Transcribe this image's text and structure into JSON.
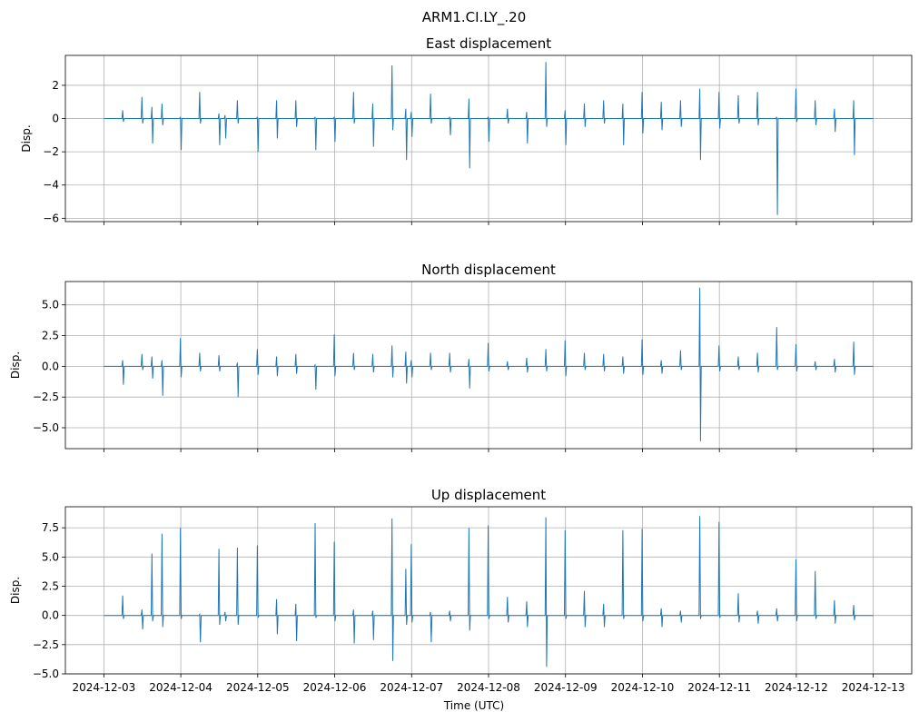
{
  "figure": {
    "suptitle": "ARM1.CI.LY_.20",
    "xlabel": "Time (UTC)"
  },
  "chart_data": [
    {
      "type": "line",
      "title": "East displacement",
      "ylabel": "Disp.",
      "ylim": [
        -6.2,
        3.8
      ],
      "yticks": [
        2,
        0,
        -2,
        -4,
        -6
      ],
      "ytick_labels": [
        "2",
        "0",
        "−2",
        "−4",
        "−6"
      ],
      "xlim": [
        -0.5,
        10.5
      ],
      "grid": true,
      "color": "#1f77b4",
      "spikes": [
        [
          0.25,
          0.5,
          -0.2
        ],
        [
          0.5,
          1.3,
          -0.3
        ],
        [
          0.63,
          0.7,
          -1.5
        ],
        [
          0.76,
          0.9,
          -0.4
        ],
        [
          1.0,
          0.1,
          -1.9
        ],
        [
          1.25,
          1.6,
          -0.3
        ],
        [
          1.5,
          0.3,
          -1.6
        ],
        [
          1.58,
          0.2,
          -1.2
        ],
        [
          1.74,
          1.1,
          -0.3
        ],
        [
          2.0,
          0.1,
          -2.0
        ],
        [
          2.25,
          1.1,
          -1.2
        ],
        [
          2.5,
          1.1,
          -0.5
        ],
        [
          2.75,
          0.1,
          -1.9
        ],
        [
          3.0,
          0.1,
          -1.4
        ],
        [
          3.25,
          1.6,
          -0.3
        ],
        [
          3.5,
          0.9,
          -1.7
        ],
        [
          3.75,
          3.2,
          -0.7
        ],
        [
          3.93,
          0.6,
          -2.5
        ],
        [
          4.0,
          0.4,
          -1.1
        ],
        [
          4.25,
          1.5,
          -0.3
        ],
        [
          4.5,
          0.1,
          -1.0
        ],
        [
          4.75,
          1.2,
          -3.0
        ],
        [
          5.0,
          0.1,
          -1.4
        ],
        [
          5.25,
          0.6,
          -0.3
        ],
        [
          5.5,
          0.4,
          -1.5
        ],
        [
          5.75,
          3.4,
          -0.5
        ],
        [
          6.0,
          0.5,
          -1.6
        ],
        [
          6.25,
          0.9,
          -0.5
        ],
        [
          6.5,
          1.1,
          -0.3
        ],
        [
          6.75,
          0.9,
          -1.6
        ],
        [
          7.0,
          1.6,
          -0.9
        ],
        [
          7.25,
          1.0,
          -0.7
        ],
        [
          7.5,
          1.1,
          -0.5
        ],
        [
          7.75,
          1.8,
          -2.5
        ],
        [
          8.0,
          1.6,
          -0.6
        ],
        [
          8.25,
          1.4,
          -0.3
        ],
        [
          8.5,
          1.6,
          -0.4
        ],
        [
          8.75,
          0.1,
          -5.8
        ],
        [
          9.0,
          1.8,
          -0.2
        ],
        [
          9.25,
          1.1,
          -0.4
        ],
        [
          9.5,
          0.6,
          -0.8
        ],
        [
          9.75,
          1.1,
          -2.2
        ]
      ]
    },
    {
      "type": "line",
      "title": "North displacement",
      "ylabel": "Disp.",
      "ylim": [
        -6.7,
        6.9
      ],
      "yticks": [
        5.0,
        2.5,
        0.0,
        -2.5,
        -5.0
      ],
      "ytick_labels": [
        "5.0",
        "2.5",
        "0.0",
        "−2.5",
        "−5.0"
      ],
      "xlim": [
        -0.5,
        10.5
      ],
      "grid": true,
      "color": "#1f77b4",
      "spikes": [
        [
          0.25,
          0.5,
          -1.5
        ],
        [
          0.5,
          1.0,
          -0.3
        ],
        [
          0.63,
          0.8,
          -1.0
        ],
        [
          0.76,
          0.5,
          -2.4
        ],
        [
          1.0,
          2.3,
          -0.9
        ],
        [
          1.25,
          1.1,
          -0.4
        ],
        [
          1.5,
          0.9,
          -0.4
        ],
        [
          1.74,
          0.3,
          -2.5
        ],
        [
          2.0,
          1.4,
          -0.7
        ],
        [
          2.25,
          0.8,
          -0.8
        ],
        [
          2.5,
          1.0,
          -0.6
        ],
        [
          2.75,
          0.1,
          -1.9
        ],
        [
          3.0,
          2.6,
          -0.8
        ],
        [
          3.25,
          1.1,
          -0.3
        ],
        [
          3.5,
          1.0,
          -0.5
        ],
        [
          3.75,
          1.7,
          -0.9
        ],
        [
          3.93,
          1.2,
          -1.4
        ],
        [
          4.0,
          0.5,
          -0.9
        ],
        [
          4.25,
          1.1,
          -0.3
        ],
        [
          4.5,
          1.1,
          -0.5
        ],
        [
          4.75,
          0.6,
          -1.8
        ],
        [
          5.0,
          1.9,
          -0.4
        ],
        [
          5.25,
          0.4,
          -0.3
        ],
        [
          5.5,
          0.7,
          -0.5
        ],
        [
          5.75,
          1.4,
          -0.4
        ],
        [
          6.0,
          2.1,
          -0.8
        ],
        [
          6.25,
          1.1,
          -0.3
        ],
        [
          6.5,
          1.0,
          -0.4
        ],
        [
          6.75,
          0.8,
          -0.6
        ],
        [
          7.0,
          2.2,
          -0.7
        ],
        [
          7.25,
          0.5,
          -0.6
        ],
        [
          7.5,
          1.3,
          -0.3
        ],
        [
          7.75,
          6.4,
          -6.1
        ],
        [
          8.0,
          1.7,
          -0.4
        ],
        [
          8.25,
          0.8,
          -0.3
        ],
        [
          8.5,
          1.1,
          -0.5
        ],
        [
          8.75,
          3.2,
          -0.3
        ],
        [
          9.0,
          1.8,
          -0.4
        ],
        [
          9.25,
          0.4,
          -0.3
        ],
        [
          9.5,
          0.6,
          -0.5
        ],
        [
          9.75,
          2.0,
          -0.7
        ]
      ]
    },
    {
      "type": "line",
      "title": "Up displacement",
      "ylabel": "Disp.",
      "ylim": [
        -5.0,
        9.3
      ],
      "yticks": [
        7.5,
        5.0,
        2.5,
        0.0,
        -2.5,
        -5.0
      ],
      "ytick_labels": [
        "7.5",
        "5.0",
        "2.5",
        "0.0",
        "−2.5",
        "−5.0"
      ],
      "xlim": [
        -0.5,
        10.5
      ],
      "grid": true,
      "color": "#1f77b4",
      "spikes": [
        [
          0.25,
          1.7,
          -0.3
        ],
        [
          0.5,
          0.5,
          -1.2
        ],
        [
          0.63,
          5.3,
          -0.5
        ],
        [
          0.76,
          7.0,
          -1.0
        ],
        [
          1.0,
          7.5,
          -0.3
        ],
        [
          1.25,
          0.1,
          -2.3
        ],
        [
          1.5,
          5.7,
          -0.8
        ],
        [
          1.58,
          0.3,
          -0.5
        ],
        [
          1.74,
          5.8,
          -0.8
        ],
        [
          2.0,
          6.0,
          -0.2
        ],
        [
          2.25,
          1.4,
          -1.6
        ],
        [
          2.5,
          1.0,
          -2.2
        ],
        [
          2.75,
          7.9,
          -0.2
        ],
        [
          3.0,
          6.3,
          -0.5
        ],
        [
          3.25,
          0.5,
          -2.4
        ],
        [
          3.5,
          0.4,
          -2.1
        ],
        [
          3.75,
          8.3,
          -3.9
        ],
        [
          3.93,
          4.0,
          -0.8
        ],
        [
          4.0,
          6.1,
          -0.6
        ],
        [
          4.25,
          0.3,
          -2.3
        ],
        [
          4.5,
          0.4,
          -0.5
        ],
        [
          4.75,
          7.5,
          -1.3
        ],
        [
          5.0,
          7.7,
          -0.3
        ],
        [
          5.25,
          1.6,
          -0.6
        ],
        [
          5.5,
          1.2,
          -1.0
        ],
        [
          5.75,
          8.4,
          -4.4
        ],
        [
          6.0,
          7.3,
          -0.3
        ],
        [
          6.25,
          2.1,
          -1.0
        ],
        [
          6.5,
          1.0,
          -1.0
        ],
        [
          6.75,
          7.3,
          -0.3
        ],
        [
          7.0,
          7.4,
          -0.5
        ],
        [
          7.25,
          0.6,
          -1.0
        ],
        [
          7.5,
          0.4,
          -0.6
        ],
        [
          7.75,
          8.5,
          -0.3
        ],
        [
          8.0,
          8.0,
          -0.2
        ],
        [
          8.25,
          1.9,
          -0.6
        ],
        [
          8.5,
          0.4,
          -0.7
        ],
        [
          8.75,
          0.6,
          -0.5
        ],
        [
          9.0,
          4.8,
          -0.5
        ],
        [
          9.25,
          3.8,
          -0.3
        ],
        [
          9.5,
          1.3,
          -0.7
        ],
        [
          9.75,
          0.9,
          -0.4
        ]
      ]
    }
  ],
  "x_ticks": {
    "values": [
      0,
      1,
      2,
      3,
      4,
      5,
      6,
      7,
      8,
      9,
      10
    ],
    "labels": [
      "2024-12-03",
      "2024-12-04",
      "2024-12-05",
      "2024-12-06",
      "2024-12-07",
      "2024-12-08",
      "2024-12-09",
      "2024-12-10",
      "2024-12-11",
      "2024-12-12",
      "2024-12-13"
    ]
  }
}
